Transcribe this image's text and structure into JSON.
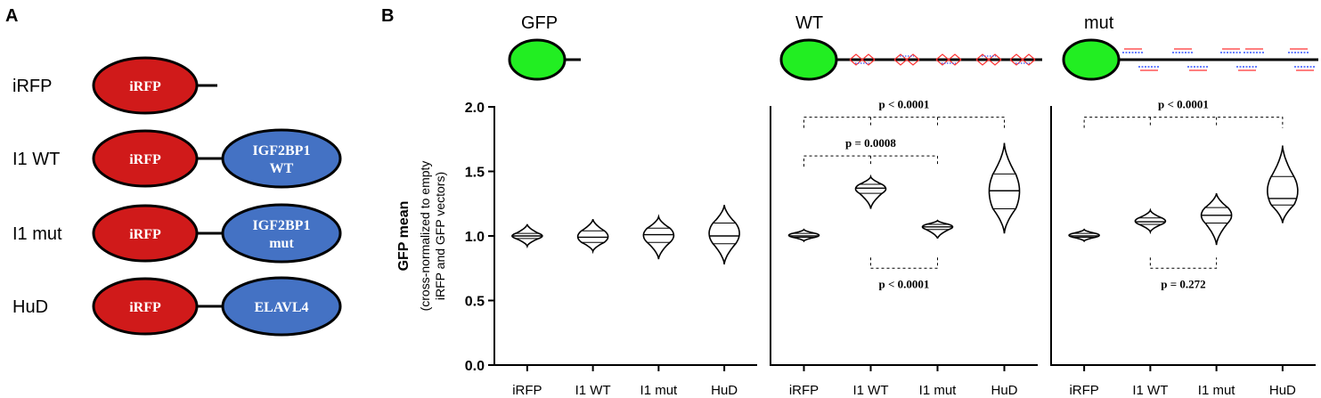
{
  "panel_a": {
    "label": "A",
    "colors": {
      "irfp": "#d01a1a",
      "partner": "#4472c4",
      "text": "#ffffff",
      "outline": "#000000"
    },
    "constructs": [
      {
        "name": "iRFP",
        "core": "iRFP",
        "partner": []
      },
      {
        "name": "I1 WT",
        "core": "iRFP",
        "partner": [
          "IGF2BP1",
          "WT"
        ]
      },
      {
        "name": "I1 mut",
        "core": "iRFP",
        "partner": [
          "IGF2BP1",
          "mut"
        ]
      },
      {
        "name": "HuD",
        "core": "iRFP",
        "partner": [
          "ELAVL4"
        ]
      }
    ]
  },
  "panel_b": {
    "label": "B",
    "colors": {
      "gfp": "#22ee22",
      "stem_red": "#ff3333",
      "stem_blue": "#3355ff"
    },
    "reporters": [
      {
        "title": "GFP",
        "tail": "short"
      },
      {
        "title": "WT",
        "tail": "wt-stemloops"
      },
      {
        "title": "mut",
        "tail": "mut-stemloops"
      }
    ],
    "y_label_main": "GFP mean",
    "y_label_sub": [
      "(cross-normalized to empty",
      "iRFP and GFP vectors)"
    ],
    "y_ticks": [
      "0.0",
      "0.5",
      "1.0",
      "1.5",
      "2.0"
    ],
    "x_ticks": [
      "iRFP",
      "I1 WT",
      "I1 mut",
      "HuD"
    ]
  },
  "chart_data": [
    {
      "type": "violin",
      "title": "GFP",
      "ylim": [
        0,
        2
      ],
      "categories": [
        "iRFP",
        "I1 WT",
        "I1 mut",
        "HuD"
      ],
      "violins": [
        {
          "min": 0.92,
          "max": 1.09,
          "q1": 0.98,
          "median": 1.0,
          "q3": 1.02
        },
        {
          "min": 0.88,
          "max": 1.13,
          "q1": 0.95,
          "median": 0.99,
          "q3": 1.04
        },
        {
          "min": 0.82,
          "max": 1.15,
          "q1": 0.95,
          "median": 1.01,
          "q3": 1.06
        },
        {
          "min": 0.78,
          "max": 1.24,
          "q1": 0.94,
          "median": 1.0,
          "q3": 1.1
        }
      ],
      "comparisons": []
    },
    {
      "type": "violin",
      "title": "WT",
      "ylim": [
        0,
        2
      ],
      "categories": [
        "iRFP",
        "I1 WT",
        "I1 mut",
        "HuD"
      ],
      "violins": [
        {
          "min": 0.96,
          "max": 1.05,
          "q1": 0.99,
          "median": 1.0,
          "q3": 1.02
        },
        {
          "min": 1.21,
          "max": 1.46,
          "q1": 1.33,
          "median": 1.37,
          "q3": 1.4
        },
        {
          "min": 0.98,
          "max": 1.12,
          "q1": 1.05,
          "median": 1.07,
          "q3": 1.09
        },
        {
          "min": 1.02,
          "max": 1.72,
          "q1": 1.21,
          "median": 1.35,
          "q3": 1.48
        }
      ],
      "comparisons": [
        {
          "from": 0,
          "to": 3,
          "level": 1.92,
          "label": "p < 0.0001",
          "position": "above"
        },
        {
          "from": 0,
          "to": 2,
          "level": 1.62,
          "label": "p = 0.0008",
          "position": "above"
        },
        {
          "from": 1,
          "to": 2,
          "level": 0.75,
          "label": "p < 0.0001",
          "position": "below"
        }
      ]
    },
    {
      "type": "violin",
      "title": "mut",
      "ylim": [
        0,
        2
      ],
      "categories": [
        "iRFP",
        "I1 WT",
        "I1 mut",
        "HuD"
      ],
      "violins": [
        {
          "min": 0.96,
          "max": 1.05,
          "q1": 0.99,
          "median": 1.0,
          "q3": 1.02
        },
        {
          "min": 1.03,
          "max": 1.2,
          "q1": 1.09,
          "median": 1.11,
          "q3": 1.14
        },
        {
          "min": 0.93,
          "max": 1.33,
          "q1": 1.1,
          "median": 1.16,
          "q3": 1.22
        },
        {
          "min": 1.1,
          "max": 1.7,
          "q1": 1.24,
          "median": 1.29,
          "q3": 1.46
        }
      ],
      "comparisons": [
        {
          "from": 0,
          "to": 3,
          "level": 1.92,
          "label": "p < 0.0001",
          "position": "above"
        },
        {
          "from": 1,
          "to": 2,
          "level": 0.75,
          "label": "p = 0.272",
          "position": "below"
        }
      ]
    }
  ]
}
